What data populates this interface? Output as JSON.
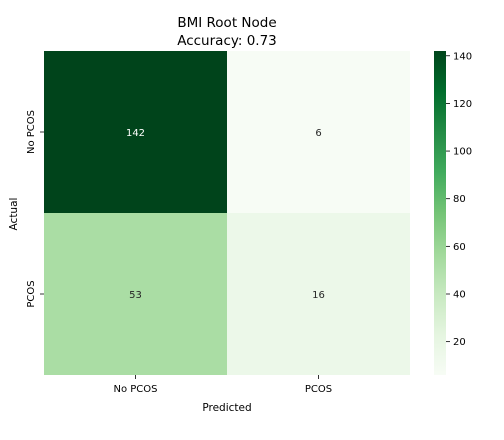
{
  "chart_data": {
    "type": "heatmap",
    "title": "BMI Root Node",
    "subtitle": "Accuracy: 0.73",
    "xlabel": "Predicted",
    "ylabel": "Actual",
    "x_categories": [
      "No PCOS",
      "PCOS"
    ],
    "y_categories": [
      "No PCOS",
      "PCOS"
    ],
    "values": [
      [
        142,
        6
      ],
      [
        53,
        16
      ]
    ],
    "colormap": "Greens",
    "colorbar": {
      "min": 6,
      "max": 142,
      "ticks": [
        20,
        40,
        60,
        80,
        100,
        120,
        140
      ]
    },
    "colors": {
      "low": "#f7fcf5",
      "high": "#00441b",
      "text_on_dark": "#ffffff",
      "text_on_light": "#262626"
    }
  }
}
